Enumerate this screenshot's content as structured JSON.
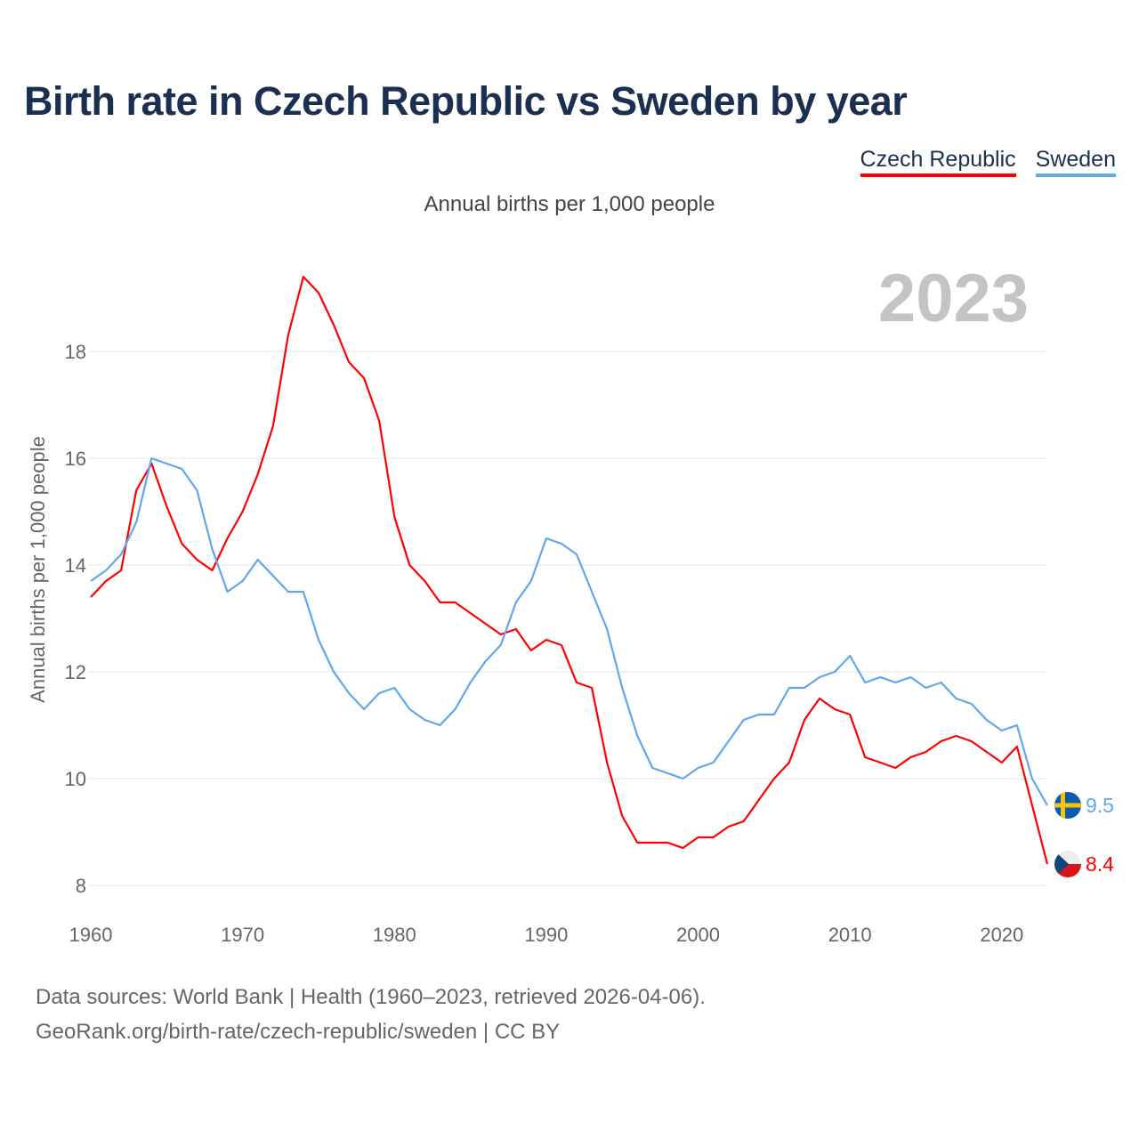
{
  "chart_data": {
    "type": "line",
    "title": "Birth rate in Czech Republic vs Sweden by year",
    "subtitle": "Annual births per 1,000 people",
    "ylabel": "Annual births per 1,000 people",
    "xlabel": "",
    "highlight_year": "2023",
    "xlim": [
      1960,
      2023
    ],
    "ylim": [
      8,
      18
    ],
    "x_ticks": [
      "1960",
      "1970",
      "1980",
      "1990",
      "2000",
      "2010",
      "2020"
    ],
    "y_ticks": [
      "8",
      "10",
      "12",
      "14",
      "16",
      "18"
    ],
    "grid": true,
    "legend_position": "top-right",
    "x": [
      1960,
      1961,
      1962,
      1963,
      1964,
      1965,
      1966,
      1967,
      1968,
      1969,
      1970,
      1971,
      1972,
      1973,
      1974,
      1975,
      1976,
      1977,
      1978,
      1979,
      1980,
      1981,
      1982,
      1983,
      1984,
      1985,
      1986,
      1987,
      1988,
      1989,
      1990,
      1991,
      1992,
      1993,
      1994,
      1995,
      1996,
      1997,
      1998,
      1999,
      2000,
      2001,
      2002,
      2003,
      2004,
      2005,
      2006,
      2007,
      2008,
      2009,
      2010,
      2011,
      2012,
      2013,
      2014,
      2015,
      2016,
      2017,
      2018,
      2019,
      2020,
      2021,
      2022,
      2023
    ],
    "series": [
      {
        "name": "Czech Republic",
        "color": "#ff0000",
        "end_label": "8.4",
        "values": [
          13.4,
          13.7,
          13.9,
          15.4,
          15.9,
          15.1,
          14.4,
          14.1,
          13.9,
          14.5,
          15.0,
          15.7,
          16.6,
          18.3,
          19.4,
          19.1,
          18.5,
          17.8,
          17.5,
          16.7,
          14.9,
          14.0,
          13.7,
          13.3,
          13.3,
          13.1,
          12.9,
          12.7,
          12.8,
          12.4,
          12.6,
          12.5,
          11.8,
          11.7,
          10.3,
          9.3,
          8.8,
          8.8,
          8.8,
          8.7,
          8.9,
          8.9,
          9.1,
          9.2,
          9.6,
          10.0,
          10.3,
          11.1,
          11.5,
          11.3,
          11.2,
          10.4,
          10.3,
          10.2,
          10.4,
          10.5,
          10.7,
          10.8,
          10.7,
          10.5,
          10.3,
          10.6,
          9.5,
          8.4
        ]
      },
      {
        "name": "Sweden",
        "color": "#5fa8ec",
        "end_label": "9.5",
        "values": [
          13.7,
          13.9,
          14.2,
          14.8,
          16.0,
          15.9,
          15.8,
          15.4,
          14.3,
          13.5,
          13.7,
          14.1,
          13.8,
          13.5,
          13.5,
          12.6,
          12.0,
          11.6,
          11.3,
          11.6,
          11.7,
          11.3,
          11.1,
          11.0,
          11.3,
          11.8,
          12.2,
          12.5,
          13.3,
          13.7,
          14.5,
          14.4,
          14.2,
          13.5,
          12.8,
          11.7,
          10.8,
          10.2,
          10.1,
          10.0,
          10.2,
          10.3,
          10.7,
          11.1,
          11.2,
          11.2,
          11.7,
          11.7,
          11.9,
          12.0,
          12.3,
          11.8,
          11.9,
          11.8,
          11.9,
          11.7,
          11.8,
          11.5,
          11.4,
          11.1,
          10.9,
          11.0,
          10.0,
          9.5
        ]
      }
    ]
  },
  "footer": {
    "line1": "Data sources: World Bank | Health (1960–2023, retrieved 2026-04-06).",
    "line2": "GeoRank.org/birth-rate/czech-republic/sweden | CC BY"
  }
}
